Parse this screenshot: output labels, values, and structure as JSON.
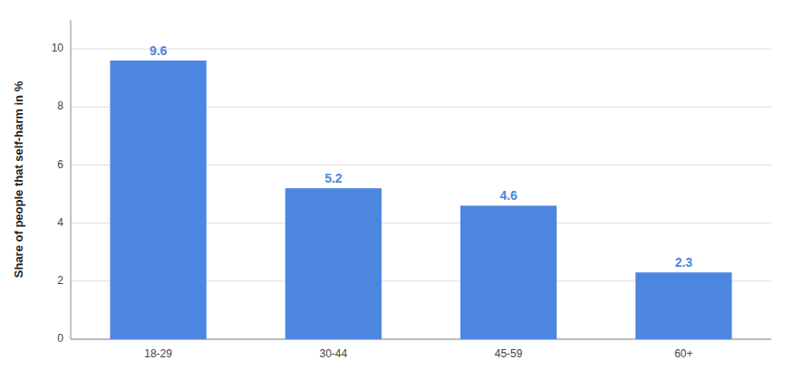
{
  "chart_data": {
    "type": "bar",
    "ylabel": "Share of people that self-harm in %",
    "categories": [
      "18-29",
      "30-44",
      "45-59",
      "60+"
    ],
    "values": [
      9.6,
      5.2,
      4.6,
      2.3
    ],
    "color": "#4d86e0",
    "ylim": [
      0,
      11
    ],
    "yticks": [
      0,
      2,
      4,
      6,
      8,
      10
    ],
    "grid": true,
    "data_labels": true
  }
}
